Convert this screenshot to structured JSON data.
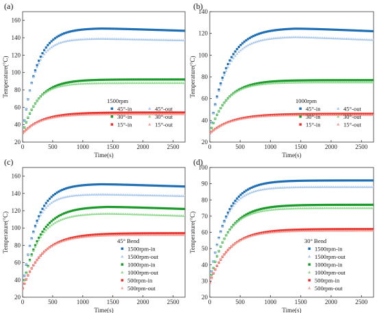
{
  "chart_data": [
    {
      "panel": "(a)",
      "type": "scatter",
      "xlabel": "Time(s)",
      "ylabel": "Temperature(°C)",
      "xlim": [
        0,
        2700
      ],
      "ylim": [
        20,
        170
      ],
      "xticks": [
        0,
        500,
        1000,
        1500,
        2000,
        2500
      ],
      "yticks": [
        20,
        40,
        60,
        80,
        100,
        120,
        140,
        160
      ],
      "legend_title": "1500rpm",
      "legend_layout": "two-columns",
      "legend_position": "lower-right",
      "series": [
        {
          "name": "45°-in",
          "color": "#1f6fb5",
          "marker": "square",
          "y0": 30,
          "peak": 151,
          "tau": 230,
          "peak_at": 1300,
          "end": 148
        },
        {
          "name": "30°-in",
          "color": "#1a9a2a",
          "marker": "square",
          "y0": 30,
          "peak": 92,
          "tau": 260,
          "peak_at": 2700,
          "end": 92
        },
        {
          "name": "15°-in",
          "color": "#e8312a",
          "marker": "square",
          "y0": 30,
          "peak": 54,
          "tau": 320,
          "peak_at": 2700,
          "end": 54
        },
        {
          "name": "45°-out",
          "color": "#a9c8ec",
          "marker": "triangle",
          "y0": 30,
          "peak": 139,
          "tau": 200,
          "peak_at": 1300,
          "end": 137
        },
        {
          "name": "30°-out",
          "color": "#8fd98f",
          "marker": "triangle",
          "y0": 30,
          "peak": 88,
          "tau": 230,
          "peak_at": 2700,
          "end": 88
        },
        {
          "name": "15°-out",
          "color": "#f4a49c",
          "marker": "triangle",
          "y0": 30,
          "peak": 52,
          "tau": 290,
          "peak_at": 2700,
          "end": 52
        }
      ]
    },
    {
      "panel": "(b)",
      "type": "scatter",
      "xlabel": "Time(s)",
      "ylabel": "Temperature(°C)",
      "xlim": [
        0,
        2700
      ],
      "ylim": [
        20,
        140
      ],
      "xticks": [
        0,
        500,
        1000,
        1500,
        2000,
        2500
      ],
      "yticks": [
        20,
        40,
        60,
        80,
        100,
        120,
        140
      ],
      "legend_title": "1000rpm",
      "legend_layout": "two-columns",
      "legend_position": "lower-right",
      "series": [
        {
          "name": "45°-in",
          "color": "#1f6fb5",
          "marker": "square",
          "y0": 28,
          "peak": 125,
          "tau": 280,
          "peak_at": 1400,
          "end": 122
        },
        {
          "name": "30°-in",
          "color": "#1a9a2a",
          "marker": "square",
          "y0": 28,
          "peak": 77,
          "tau": 280,
          "peak_at": 2700,
          "end": 77
        },
        {
          "name": "15°-in",
          "color": "#e8312a",
          "marker": "square",
          "y0": 28,
          "peak": 46,
          "tau": 360,
          "peak_at": 2700,
          "end": 46
        },
        {
          "name": "45°-out",
          "color": "#a9c8ec",
          "marker": "triangle",
          "y0": 28,
          "peak": 117,
          "tau": 260,
          "peak_at": 1400,
          "end": 114
        },
        {
          "name": "30°-out",
          "color": "#8fd98f",
          "marker": "triangle",
          "y0": 28,
          "peak": 75,
          "tau": 260,
          "peak_at": 2700,
          "end": 75
        },
        {
          "name": "15°-out",
          "color": "#f4a49c",
          "marker": "triangle",
          "y0": 28,
          "peak": 45,
          "tau": 340,
          "peak_at": 2700,
          "end": 45
        }
      ]
    },
    {
      "panel": "(c)",
      "type": "scatter",
      "xlabel": "Time(s)",
      "ylabel": "Temperature(°C)",
      "xlim": [
        0,
        2700
      ],
      "ylim": [
        20,
        170
      ],
      "xticks": [
        0,
        500,
        1000,
        1500,
        2000,
        2500
      ],
      "yticks": [
        20,
        40,
        60,
        80,
        100,
        120,
        140,
        160
      ],
      "legend_title": "45° Bend",
      "legend_layout": "one-column",
      "legend_position": "lower-right",
      "series": [
        {
          "name": "1500rpm-in",
          "color": "#1f6fb5",
          "marker": "square",
          "y0": 30,
          "peak": 151,
          "tau": 230,
          "peak_at": 1300,
          "end": 148
        },
        {
          "name": "1500rpm-out",
          "color": "#a9c8ec",
          "marker": "triangle",
          "y0": 30,
          "peak": 139,
          "tau": 200,
          "peak_at": 1300,
          "end": 137
        },
        {
          "name": "1000rpm-in",
          "color": "#1a9a2a",
          "marker": "square",
          "y0": 30,
          "peak": 125,
          "tau": 280,
          "peak_at": 1400,
          "end": 122
        },
        {
          "name": "1000rpm-out",
          "color": "#8fd98f",
          "marker": "triangle",
          "y0": 30,
          "peak": 117,
          "tau": 260,
          "peak_at": 1400,
          "end": 114
        },
        {
          "name": "500rpm-in",
          "color": "#e8312a",
          "marker": "square",
          "y0": 30,
          "peak": 94,
          "tau": 330,
          "peak_at": 2700,
          "end": 94
        },
        {
          "name": "500rpm-out",
          "color": "#f4a49c",
          "marker": "triangle",
          "y0": 30,
          "peak": 92,
          "tau": 310,
          "peak_at": 2700,
          "end": 92
        }
      ]
    },
    {
      "panel": "(d)",
      "type": "scatter",
      "xlabel": "Time(s)",
      "ylabel": "Temperature(°C)",
      "xlim": [
        0,
        2700
      ],
      "ylim": [
        20,
        100
      ],
      "xticks": [
        0,
        500,
        1000,
        1500,
        2000,
        2500
      ],
      "yticks": [
        20,
        30,
        40,
        50,
        60,
        70,
        80,
        90,
        100
      ],
      "legend_title": "30° Bend",
      "legend_layout": "one-column",
      "legend_position": "lower-right",
      "series": [
        {
          "name": "1500rpm-in",
          "color": "#1f6fb5",
          "marker": "square",
          "y0": 29,
          "peak": 92,
          "tau": 260,
          "peak_at": 2700,
          "end": 92
        },
        {
          "name": "1500rpm-out",
          "color": "#a9c8ec",
          "marker": "triangle",
          "y0": 29,
          "peak": 88,
          "tau": 240,
          "peak_at": 2700,
          "end": 88
        },
        {
          "name": "1000rpm-in",
          "color": "#1a9a2a",
          "marker": "square",
          "y0": 29,
          "peak": 77,
          "tau": 290,
          "peak_at": 2700,
          "end": 77
        },
        {
          "name": "1000rpm-out",
          "color": "#8fd98f",
          "marker": "triangle",
          "y0": 29,
          "peak": 75,
          "tau": 270,
          "peak_at": 2700,
          "end": 75
        },
        {
          "name": "500rpm-in",
          "color": "#e8312a",
          "marker": "square",
          "y0": 29,
          "peak": 62,
          "tau": 320,
          "peak_at": 2700,
          "end": 62
        },
        {
          "name": "500rpm-out",
          "color": "#f4a49c",
          "marker": "triangle",
          "y0": 29,
          "peak": 61,
          "tau": 300,
          "peak_at": 2700,
          "end": 61
        }
      ]
    }
  ]
}
